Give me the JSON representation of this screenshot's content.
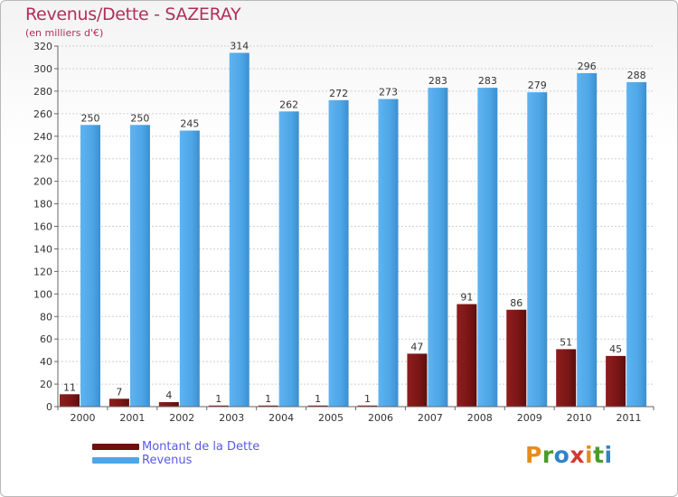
{
  "title": "Revenus/Dette - SAZERAY",
  "subtitle": "(en milliers d'€)",
  "logo": {
    "letters": [
      "P",
      "r",
      "o",
      "x",
      "i",
      "t",
      "i"
    ],
    "colors": [
      "#e88b1c",
      "#4a9c2a",
      "#2f84c8",
      "#d33a2f",
      "#e88b1c",
      "#4a9c2a",
      "#2f84c8"
    ]
  },
  "chart_data": {
    "type": "bar",
    "categories": [
      "2000",
      "2001",
      "2002",
      "2003",
      "2004",
      "2005",
      "2006",
      "2007",
      "2008",
      "2009",
      "2010",
      "2011"
    ],
    "series": [
      {
        "name": "Montant de la Dette",
        "color": "#7a1515",
        "values": [
          11,
          7,
          4,
          1,
          1,
          1,
          1,
          47,
          91,
          86,
          51,
          45
        ]
      },
      {
        "name": "Revenus",
        "color": "#4ea6e6",
        "values": [
          250,
          250,
          245,
          314,
          262,
          272,
          273,
          283,
          283,
          279,
          296,
          288
        ]
      }
    ],
    "ylim": [
      0,
      320
    ],
    "yticks": [
      0,
      20,
      40,
      60,
      80,
      100,
      120,
      140,
      160,
      180,
      200,
      220,
      240,
      260,
      280,
      300,
      320
    ],
    "grid": true,
    "legend": "bottom-left"
  }
}
